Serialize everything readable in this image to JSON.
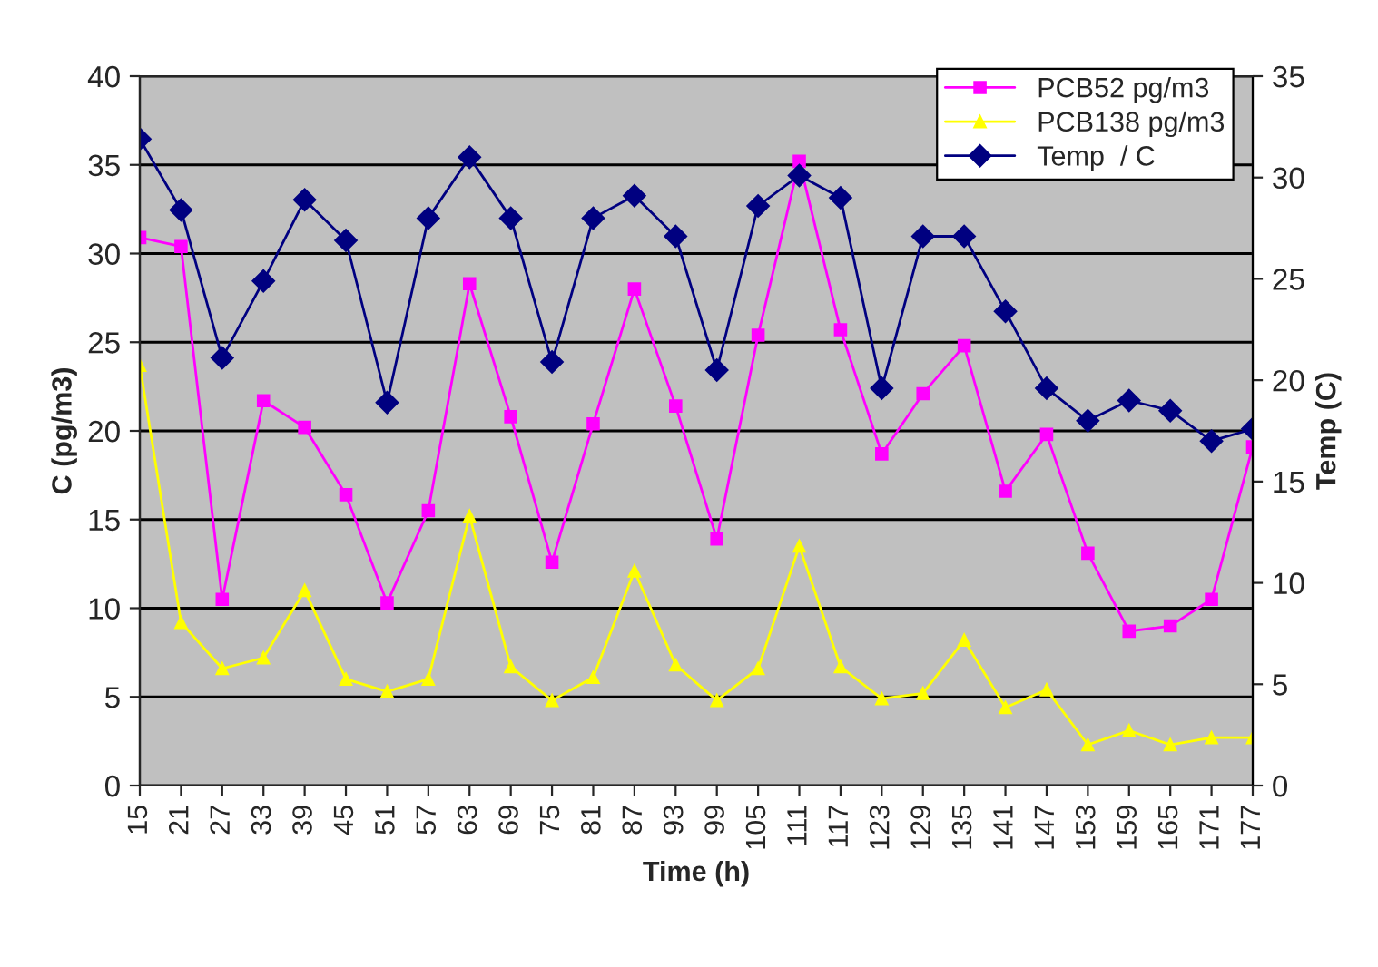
{
  "chart_data": {
    "type": "line",
    "xlabel": "Time (h)",
    "ylabel": "C (pg/m3)",
    "y2label": "Temp (C)",
    "categories": [
      "15",
      "21",
      "27",
      "33",
      "39",
      "45",
      "51",
      "57",
      "63",
      "69",
      "75",
      "81",
      "87",
      "93",
      "99",
      "105",
      "111",
      "117",
      "123",
      "129",
      "135",
      "141",
      "147",
      "153",
      "159",
      "165",
      "171",
      "177"
    ],
    "series": [
      {
        "name": "PCB52 pg/m3",
        "color": "#ff00ff",
        "marker": "square",
        "values": [
          30.9,
          30.4,
          10.5,
          21.7,
          20.2,
          16.4,
          10.3,
          15.5,
          28.3,
          20.8,
          12.6,
          20.4,
          28.0,
          21.4,
          13.9,
          25.4,
          35.2,
          25.7,
          18.7,
          22.1,
          24.8,
          16.6,
          19.8,
          13.1,
          8.7,
          9.0,
          10.5,
          19.1
        ]
      },
      {
        "name": "PCB138 pg/m3",
        "color": "#ffff00",
        "marker": "triangle",
        "values": [
          23.7,
          9.2,
          6.6,
          7.2,
          11.0,
          6.0,
          5.3,
          6.0,
          15.2,
          6.7,
          4.8,
          6.1,
          12.1,
          6.8,
          4.8,
          6.6,
          13.5,
          6.7,
          4.9,
          5.2,
          8.2,
          4.4,
          5.4,
          2.3,
          3.1,
          2.3,
          2.7,
          2.7
        ]
      },
      {
        "name": "Temp  / C",
        "color": "#000080",
        "marker": "diamond",
        "axis": "y2",
        "values": [
          31.9,
          28.4,
          21.1,
          24.9,
          28.9,
          26.9,
          18.9,
          28.0,
          31.0,
          28.0,
          20.9,
          28.0,
          29.1,
          27.1,
          20.5,
          28.6,
          30.1,
          29.0,
          19.6,
          27.1,
          27.1,
          23.4,
          19.6,
          18.0,
          19.0,
          18.5,
          17.0,
          17.6
        ]
      }
    ],
    "ylim": [
      0,
      40
    ],
    "yticks": [
      0,
      5,
      10,
      15,
      20,
      25,
      30,
      35,
      40
    ],
    "y2lim": [
      0,
      35
    ],
    "y2ticks": [
      0,
      5,
      10,
      15,
      20,
      25,
      30,
      35
    ],
    "grid": "y",
    "legend": "top right",
    "line_style": "solid"
  }
}
